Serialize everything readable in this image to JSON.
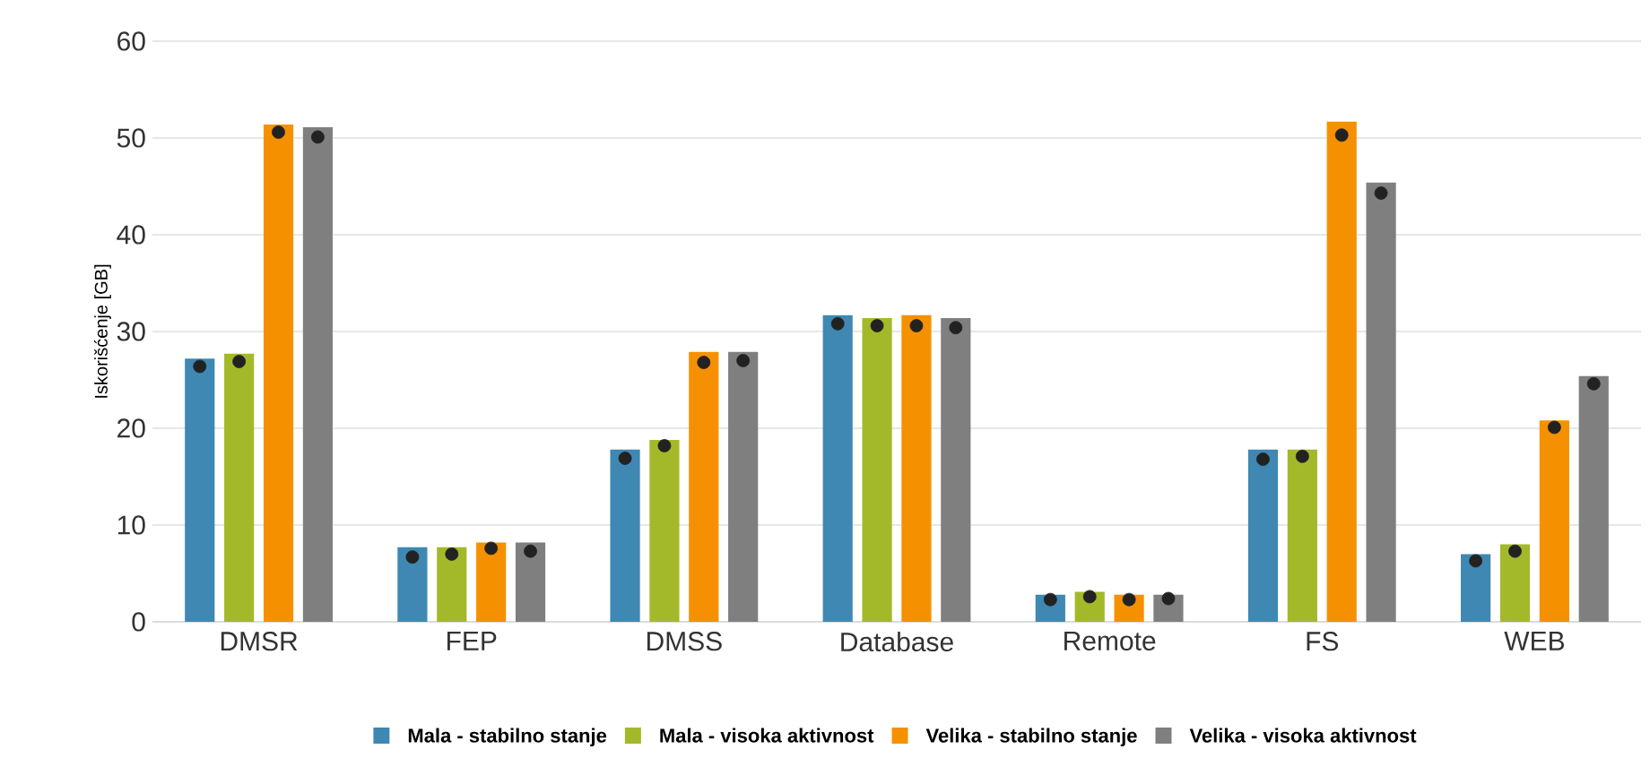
{
  "chart_data": {
    "type": "bar",
    "ylabel": "Iskorišćenje [GB]",
    "categories": [
      "DMSR",
      "FEP",
      "DMSS",
      "Database",
      "Remote",
      "FS",
      "WEB"
    ],
    "ylim": [
      0,
      60
    ],
    "yticks": [
      0,
      10,
      20,
      30,
      40,
      50,
      60
    ],
    "grid": "y",
    "legend": "bottom",
    "series": [
      {
        "name": "Mala - stabilno stanje",
        "color": "#3f88b3",
        "values": [
          27.2,
          7.7,
          17.8,
          31.7,
          2.8,
          17.8,
          7.0
        ]
      },
      {
        "name": "Mala - visoka aktivnost",
        "color": "#a4b92a",
        "values": [
          27.7,
          7.7,
          18.8,
          31.4,
          3.1,
          17.8,
          8.0
        ]
      },
      {
        "name": "Velika - stabilno stanje",
        "color": "#f59100",
        "values": [
          51.4,
          8.2,
          27.9,
          31.7,
          2.8,
          51.7,
          20.8
        ]
      },
      {
        "name": "Velika - visoka aktivnost",
        "color": "#7f7f7f",
        "values": [
          51.1,
          8.2,
          27.9,
          31.4,
          2.8,
          45.4,
          25.4
        ]
      },
      {
        "type": "scatter",
        "marker": "circle",
        "color": "#222222",
        "x": [
          "DMSR",
          "FEP",
          "DMSS",
          "Database",
          "Remote",
          "FS",
          "WEB"
        ],
        "values": [
          26.4,
          6.7,
          16.9,
          30.8,
          2.3,
          16.8,
          6.3
        ]
      },
      {
        "type": "scatter",
        "marker": "circle",
        "color": "#222222",
        "x": [
          "DMSR",
          "FEP",
          "DMSS",
          "Database",
          "Remote",
          "FS",
          "WEB"
        ],
        "values": [
          26.9,
          7.0,
          18.2,
          30.6,
          2.6,
          17.1,
          7.3
        ]
      },
      {
        "type": "scatter",
        "marker": "circle",
        "color": "#222222",
        "x": [
          "DMSR",
          "FEP",
          "DMSS",
          "Database",
          "Remote",
          "FS",
          "WEB"
        ],
        "values": [
          50.6,
          7.6,
          26.8,
          30.6,
          2.3,
          50.3,
          20.1
        ]
      },
      {
        "type": "scatter",
        "marker": "circle",
        "color": "#222222",
        "x": [
          "DMSR",
          "FEP",
          "DMSS",
          "Database",
          "Remote",
          "FS",
          "WEB"
        ],
        "values": [
          50.1,
          7.3,
          27.0,
          30.4,
          2.4,
          44.3,
          24.6
        ]
      }
    ]
  }
}
